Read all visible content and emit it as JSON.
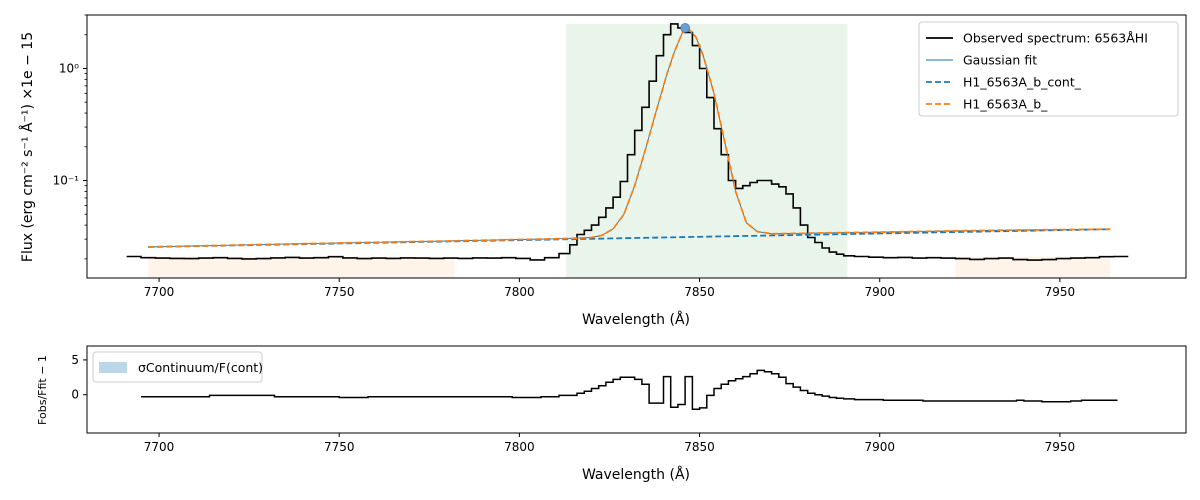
{
  "chart_data": [
    {
      "type": "line",
      "yscale": "log",
      "xlabel": "Wavelength (Å)",
      "ylabel": "Flux (erg cm⁻² s⁻¹ Å⁻¹) ×1e − 15",
      "xlim": [
        7680,
        7985
      ],
      "ylim": [
        0.0135,
        3.0
      ],
      "xticks": [
        7700,
        7750,
        7800,
        7850,
        7900,
        7950
      ],
      "yticks": [
        {
          "value": 1.0,
          "label": "10⁰"
        },
        {
          "value": 0.1,
          "label": "10⁻¹"
        }
      ],
      "legend": {
        "placement": "top-right",
        "entries": [
          "Observed spectrum: 6563ÅHI",
          "Gaussian fit",
          "H1_6563A_b_cont_",
          "H1_6563A_b_"
        ]
      },
      "shaded_regions": [
        {
          "label": "continuum",
          "color": "#fdebd9",
          "x": [
            7697,
            7782
          ]
        },
        {
          "label": "line",
          "color": "#d7ecd9",
          "x": [
            7813,
            7891
          ]
        },
        {
          "label": "continuum",
          "color": "#fdebd9",
          "x": [
            7921,
            7964
          ]
        }
      ],
      "peak_marker": {
        "x": 7846,
        "y": 2.3,
        "color": "#6a9fcf"
      },
      "series": [
        {
          "name": "Observed spectrum: 6563ÅHI",
          "style": "step",
          "color": "#000000",
          "x": [
            7693,
            7697,
            7701,
            7705,
            7709,
            7713,
            7717,
            7721,
            7725,
            7729,
            7733,
            7737,
            7741,
            7745,
            7749,
            7753,
            7757,
            7761,
            7765,
            7769,
            7773,
            7777,
            7781,
            7785,
            7789,
            7793,
            7797,
            7801,
            7805,
            7809,
            7813,
            7815,
            7817,
            7819,
            7821,
            7823,
            7825,
            7827,
            7829,
            7831,
            7833,
            7835,
            7837,
            7839,
            7841,
            7843,
            7845,
            7847,
            7849,
            7851,
            7853,
            7855,
            7857,
            7859,
            7861,
            7863,
            7865,
            7867,
            7869,
            7871,
            7873,
            7875,
            7877,
            7879,
            7881,
            7883,
            7885,
            7887,
            7889,
            7891,
            7895,
            7899,
            7903,
            7907,
            7911,
            7915,
            7919,
            7923,
            7927,
            7931,
            7935,
            7939,
            7943,
            7947,
            7951,
            7955,
            7959,
            7963,
            7967
          ],
          "y": [
            0.021,
            0.0205,
            0.0203,
            0.0202,
            0.0201,
            0.0203,
            0.0205,
            0.0202,
            0.02,
            0.0201,
            0.0204,
            0.0206,
            0.0203,
            0.0205,
            0.0209,
            0.0204,
            0.0201,
            0.0203,
            0.0202,
            0.0204,
            0.0203,
            0.0202,
            0.0203,
            0.0202,
            0.0204,
            0.0203,
            0.0205,
            0.0202,
            0.0196,
            0.0205,
            0.0223,
            0.0267,
            0.033,
            0.036,
            0.04,
            0.047,
            0.057,
            0.071,
            0.098,
            0.17,
            0.28,
            0.45,
            0.77,
            1.3,
            2.0,
            2.5,
            2.3,
            2.1,
            1.6,
            1.0,
            0.55,
            0.29,
            0.17,
            0.1,
            0.085,
            0.09,
            0.096,
            0.1,
            0.1,
            0.093,
            0.088,
            0.076,
            0.057,
            0.04,
            0.031,
            0.028,
            0.025,
            0.023,
            0.022,
            0.0213,
            0.021,
            0.0207,
            0.0205,
            0.0206,
            0.0203,
            0.0205,
            0.0203,
            0.0201,
            0.0198,
            0.0201,
            0.0203,
            0.0197,
            0.0195,
            0.0197,
            0.0201,
            0.0203,
            0.0205,
            0.0209,
            0.021
          ]
        },
        {
          "name": "H1_6563A_b_cont_",
          "style": "dashed",
          "color": "#1f77b4",
          "x": [
            7697,
            7964
          ],
          "y": [
            0.0255,
            0.0368
          ]
        },
        {
          "name": "H1_6563A_b_",
          "style": "dashed",
          "color": "#ff7f0e",
          "x": [
            7697,
            7720,
            7740,
            7760,
            7780,
            7800,
            7810,
            7815,
            7820,
            7823,
            7826,
            7829,
            7832,
            7835,
            7838,
            7841,
            7843,
            7845,
            7846,
            7847,
            7849,
            7851,
            7854,
            7857,
            7860,
            7863,
            7866,
            7870,
            7880,
            7900,
            7920,
            7940,
            7964
          ],
          "y": [
            0.0255,
            0.0265,
            0.0273,
            0.0281,
            0.0289,
            0.0298,
            0.0302,
            0.0305,
            0.031,
            0.0325,
            0.037,
            0.05,
            0.09,
            0.19,
            0.42,
            0.9,
            1.4,
            2.0,
            2.3,
            2.25,
            1.9,
            1.3,
            0.6,
            0.22,
            0.08,
            0.042,
            0.035,
            0.0335,
            0.0339,
            0.0347,
            0.0355,
            0.0362,
            0.0368
          ]
        }
      ]
    },
    {
      "type": "line",
      "xlabel": "Wavelength (Å)",
      "ylabel": "Fobs/Ffit − 1",
      "xlim": [
        7680,
        7985
      ],
      "ylim": [
        -5.5,
        7
      ],
      "xticks": [
        7700,
        7750,
        7800,
        7850,
        7900,
        7950
      ],
      "yticks": [
        {
          "value": 5,
          "label": "5"
        },
        {
          "value": 0,
          "label": "0"
        }
      ],
      "legend": {
        "placement": "top-left",
        "entries": [
          "σContinuum/F(cont)"
        ]
      },
      "series": [
        {
          "name": "residual",
          "style": "step",
          "color": "#000000",
          "x": [
            7697,
            7713,
            7715,
            7749,
            7751,
            7757,
            7759,
            7797,
            7799,
            7805,
            7807,
            7815,
            7817,
            7819,
            7821,
            7823,
            7825,
            7827,
            7829,
            7831,
            7833,
            7835,
            7837,
            7839,
            7841,
            7843,
            7845,
            7847,
            7849,
            7851,
            7853,
            7855,
            7857,
            7859,
            7861,
            7863,
            7865,
            7867,
            7869,
            7871,
            7873,
            7875,
            7877,
            7879,
            7881,
            7883,
            7885,
            7887,
            7889,
            7891,
            7895,
            7899,
            7903,
            7907,
            7911,
            7913,
            7937,
            7939,
            7941,
            7949,
            7951,
            7955,
            7957,
            7964
          ],
          "y": [
            -0.3,
            -0.3,
            -0.1,
            -0.3,
            -0.4,
            -0.4,
            -0.3,
            -0.3,
            -0.4,
            -0.4,
            -0.3,
            -0.1,
            0.2,
            0.5,
            0.9,
            1.3,
            1.8,
            2.2,
            2.5,
            2.5,
            2.2,
            1.5,
            -1.2,
            -1.2,
            2.6,
            -1.8,
            -1.4,
            2.6,
            -2.1,
            -1.9,
            -0.1,
            0.9,
            1.5,
            2.0,
            2.3,
            2.6,
            3.0,
            3.5,
            3.3,
            3.0,
            2.5,
            1.6,
            1.1,
            0.6,
            0.2,
            0.0,
            -0.2,
            -0.4,
            -0.5,
            -0.6,
            -0.7,
            -0.7,
            -0.8,
            -0.8,
            -0.8,
            -0.9,
            -0.9,
            -0.8,
            -0.9,
            -1.0,
            -1.0,
            -0.9,
            -0.8,
            -0.8
          ]
        }
      ]
    }
  ]
}
